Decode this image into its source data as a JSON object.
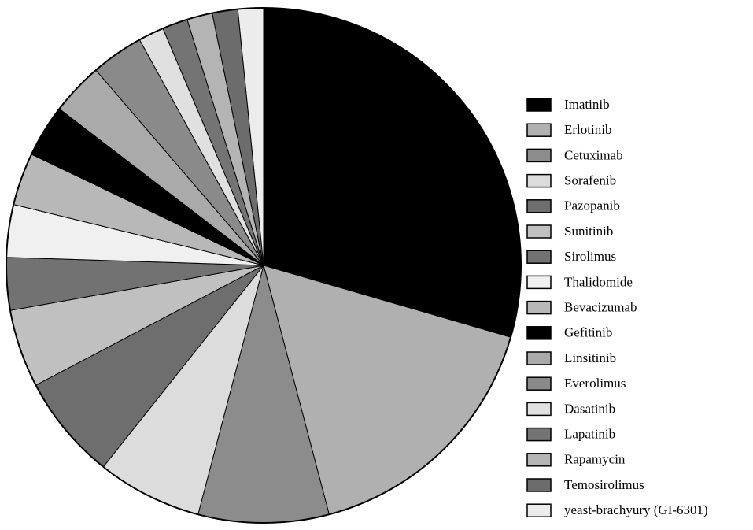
{
  "chart_data": {
    "type": "pie",
    "categories": [
      "Imatinib",
      "Erlotinib",
      "Cetuximab",
      "Sorafenib",
      "Pazopanib",
      "Sunitinib",
      "Sirolimus",
      "Thalidomide",
      "Bevacizumab",
      "Gefitinib",
      "Linsitinib",
      "Everolimus",
      "Dasatinib",
      "Lapatinib",
      "Rapamycin",
      "Temosirolimus",
      "yeast-brachyury (GI-6301)"
    ],
    "values": [
      29.5,
      16.4,
      8.2,
      6.6,
      6.6,
      4.9,
      3.3,
      3.3,
      3.3,
      3.3,
      3.3,
      3.3,
      1.6,
      1.6,
      1.6,
      1.6,
      1.6
    ],
    "colors": [
      "#000000",
      "#b0b0b0",
      "#8c8c8c",
      "#dcdcdc",
      "#6e6e6e",
      "#c0c0c0",
      "#727272",
      "#f0f0f0",
      "#b8b8b8",
      "#000000",
      "#aaaaaa",
      "#8a8a8a",
      "#e0e0e0",
      "#747474",
      "#b4b4b4",
      "#6c6c6c",
      "#ececec"
    ],
    "legend": "right"
  }
}
